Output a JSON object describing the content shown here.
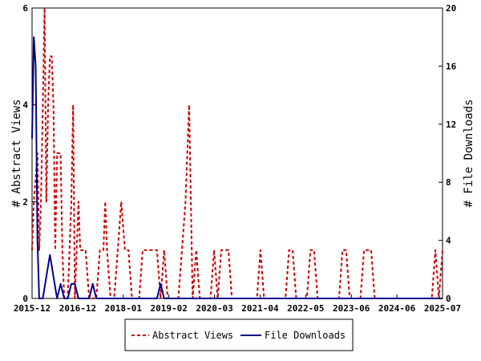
{
  "chart_data": {
    "type": "line",
    "xlabel": "",
    "ylabel": "# Abstract Views",
    "y2label": "# File Downloads",
    "x_tick_labels": [
      "2015-12",
      "2016-12",
      "2018-01",
      "2019-02",
      "2020-03",
      "2021-04",
      "2022-05",
      "2023-06",
      "2024-06",
      "2025-07"
    ],
    "ylim": [
      0,
      6
    ],
    "y_ticks": [
      0,
      2,
      4,
      6
    ],
    "y2lim": [
      0,
      20
    ],
    "y2_ticks": [
      0,
      4,
      8,
      12,
      16,
      20
    ],
    "legend_position": "bottom",
    "grid": false,
    "x_month_index_range": [
      0,
      115
    ],
    "series": [
      {
        "name": "Abstract Views",
        "axis": "left",
        "color": "#cc0000",
        "style": "dashed",
        "points": [
          [
            0,
            1
          ],
          [
            0.5,
            2
          ],
          [
            1,
            2.5
          ],
          [
            1.5,
            3
          ],
          [
            2,
            1
          ],
          [
            2.5,
            2
          ],
          [
            3,
            4
          ],
          [
            3.5,
            6
          ],
          [
            4,
            2
          ],
          [
            4.5,
            4
          ],
          [
            5,
            5
          ],
          [
            5.5,
            5
          ],
          [
            6,
            4
          ],
          [
            6.5,
            1
          ],
          [
            7,
            3
          ],
          [
            7.5,
            3
          ],
          [
            8,
            3
          ],
          [
            8.5,
            1
          ],
          [
            9,
            0
          ],
          [
            10,
            0
          ],
          [
            10.5,
            1
          ],
          [
            11,
            2
          ],
          [
            11.5,
            4
          ],
          [
            12,
            0
          ],
          [
            13,
            2
          ],
          [
            13.5,
            1
          ],
          [
            15,
            1
          ],
          [
            16,
            0
          ],
          [
            18,
            0
          ],
          [
            19,
            1
          ],
          [
            20,
            1
          ],
          [
            20.5,
            2
          ],
          [
            21,
            1
          ],
          [
            22,
            0
          ],
          [
            23,
            0
          ],
          [
            24,
            1
          ],
          [
            25,
            2
          ],
          [
            26,
            1
          ],
          [
            27,
            1
          ],
          [
            28,
            0
          ],
          [
            29,
            0
          ],
          [
            30,
            0
          ],
          [
            31,
            1
          ],
          [
            32,
            1
          ],
          [
            33,
            1
          ],
          [
            34,
            1
          ],
          [
            35,
            1
          ],
          [
            36,
            0
          ],
          [
            37,
            1
          ],
          [
            38,
            0
          ],
          [
            39,
            0
          ],
          [
            40,
            0
          ],
          [
            41,
            0
          ],
          [
            42,
            1
          ],
          [
            43,
            2
          ],
          [
            44,
            4
          ],
          [
            44.5,
            2
          ],
          [
            45,
            0
          ],
          [
            46,
            1
          ],
          [
            47,
            0
          ],
          [
            48,
            0
          ],
          [
            49,
            0
          ],
          [
            50,
            0
          ],
          [
            51,
            1
          ],
          [
            52,
            0
          ],
          [
            53,
            1
          ],
          [
            54,
            1
          ],
          [
            55,
            1
          ],
          [
            56,
            0
          ],
          [
            57,
            0
          ],
          [
            58,
            0
          ],
          [
            59,
            0
          ],
          [
            60,
            0
          ],
          [
            61,
            0
          ],
          [
            62,
            0
          ],
          [
            63,
            0
          ],
          [
            64,
            1
          ],
          [
            65,
            0
          ],
          [
            66,
            0
          ],
          [
            67,
            0
          ],
          [
            68,
            0
          ],
          [
            69,
            0
          ],
          [
            70,
            0
          ],
          [
            71,
            0
          ],
          [
            72,
            1
          ],
          [
            73,
            1
          ],
          [
            74,
            0
          ],
          [
            75,
            0
          ],
          [
            76,
            0
          ],
          [
            77,
            0
          ],
          [
            78,
            1
          ],
          [
            79,
            1
          ],
          [
            80,
            0
          ],
          [
            81,
            0
          ],
          [
            82,
            0
          ],
          [
            83,
            0
          ],
          [
            84,
            0
          ],
          [
            85,
            0
          ],
          [
            86,
            0
          ],
          [
            87,
            1
          ],
          [
            88,
            1
          ],
          [
            89,
            0
          ],
          [
            90,
            0
          ],
          [
            91,
            0
          ],
          [
            92,
            0
          ],
          [
            93,
            1
          ],
          [
            94,
            1
          ],
          [
            95,
            1
          ],
          [
            96,
            0
          ],
          [
            97,
            0
          ],
          [
            98,
            0
          ],
          [
            99,
            0
          ],
          [
            100,
            0
          ],
          [
            101,
            0
          ],
          [
            102,
            0
          ],
          [
            103,
            0
          ],
          [
            104,
            0
          ],
          [
            105,
            0
          ],
          [
            106,
            0
          ],
          [
            107,
            0
          ],
          [
            108,
            0
          ],
          [
            109,
            0
          ],
          [
            110,
            0
          ],
          [
            111,
            0
          ],
          [
            112,
            0
          ],
          [
            113,
            1
          ],
          [
            114,
            0
          ],
          [
            115,
            1
          ]
        ]
      },
      {
        "name": "File Downloads",
        "axis": "right",
        "color": "#00008b",
        "style": "solid",
        "points": [
          [
            0,
            11
          ],
          [
            0.5,
            18
          ],
          [
            1,
            16
          ],
          [
            1.5,
            4
          ],
          [
            2,
            0
          ],
          [
            3,
            0
          ],
          [
            4,
            1.5
          ],
          [
            5,
            3
          ],
          [
            6,
            1.5
          ],
          [
            7,
            0
          ],
          [
            8,
            1
          ],
          [
            9,
            0
          ],
          [
            10,
            0
          ],
          [
            11,
            1
          ],
          [
            12,
            1
          ],
          [
            13,
            0
          ],
          [
            16,
            0
          ],
          [
            17,
            1
          ],
          [
            18,
            0
          ],
          [
            20,
            0
          ],
          [
            24,
            0
          ],
          [
            25,
            0
          ],
          [
            26,
            0
          ],
          [
            27,
            0
          ],
          [
            28,
            0
          ],
          [
            29,
            0
          ],
          [
            30,
            0
          ],
          [
            31,
            0
          ],
          [
            32,
            0
          ],
          [
            33,
            0
          ],
          [
            34,
            0
          ],
          [
            35,
            0
          ],
          [
            36,
            1
          ],
          [
            37,
            0
          ],
          [
            40,
            0
          ],
          [
            60,
            0
          ],
          [
            80,
            0
          ],
          [
            100,
            0
          ],
          [
            115,
            0
          ]
        ]
      }
    ]
  }
}
